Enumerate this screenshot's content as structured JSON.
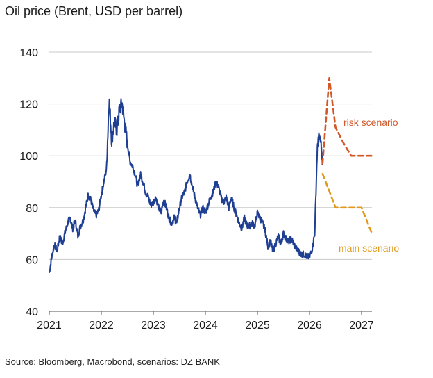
{
  "title": "Oil price (Brent, USD per barrel)",
  "source": "Source: Bloomberg, Macrobond, scenarios: DZ BANK",
  "colors": {
    "brent": "#1f3f93",
    "risk": "#d2582a",
    "main": "#e09a1f",
    "grid": "#c9c9c9",
    "axis": "#555555"
  },
  "chart_data": {
    "type": "line",
    "title": "Oil price (Brent, USD per barrel)",
    "xlabel": "",
    "ylabel": "",
    "xlim": [
      2021,
      2027.25
    ],
    "ylim": [
      40,
      140
    ],
    "y_ticks": [
      40,
      60,
      80,
      100,
      120,
      140
    ],
    "x_ticks": [
      2021,
      2022,
      2023,
      2024,
      2025,
      2026,
      2027
    ],
    "grid": "horizontal",
    "series": [
      {
        "name": "Brent",
        "style": "solid",
        "x": [
          2021.0,
          2021.05,
          2021.1,
          2021.15,
          2021.2,
          2021.25,
          2021.3,
          2021.35,
          2021.4,
          2021.45,
          2021.5,
          2021.55,
          2021.6,
          2021.65,
          2021.7,
          2021.75,
          2021.8,
          2021.85,
          2021.9,
          2021.95,
          2022.0,
          2022.05,
          2022.1,
          2022.15,
          2022.2,
          2022.25,
          2022.3,
          2022.35,
          2022.4,
          2022.45,
          2022.5,
          2022.55,
          2022.6,
          2022.65,
          2022.7,
          2022.75,
          2022.8,
          2022.85,
          2022.9,
          2022.95,
          2023.0,
          2023.05,
          2023.1,
          2023.15,
          2023.2,
          2023.25,
          2023.3,
          2023.35,
          2023.4,
          2023.45,
          2023.5,
          2023.55,
          2023.6,
          2023.65,
          2023.7,
          2023.75,
          2023.8,
          2023.85,
          2023.9,
          2023.95,
          2024.0,
          2024.05,
          2024.1,
          2024.15,
          2024.2,
          2024.25,
          2024.3,
          2024.35,
          2024.4,
          2024.45,
          2024.5,
          2024.55,
          2024.6,
          2024.65,
          2024.7,
          2024.75,
          2024.8,
          2024.85,
          2024.9,
          2024.95,
          2025.0,
          2025.05,
          2025.1,
          2025.15,
          2025.2,
          2025.25,
          2025.3,
          2025.35,
          2025.4,
          2025.45,
          2025.5,
          2025.55,
          2025.6,
          2025.65,
          2025.7,
          2025.75,
          2025.8,
          2025.85,
          2025.9,
          2025.95,
          2026.0,
          2026.05,
          2026.1,
          2026.15,
          2026.18,
          2026.22,
          2026.25
        ],
        "y": [
          55,
          61,
          66,
          63,
          69,
          66,
          70,
          74,
          76,
          72,
          75,
          69,
          73,
          75,
          80,
          85,
          83,
          79,
          77,
          79,
          85,
          90,
          95,
          122,
          106,
          113,
          110,
          118,
          120,
          112,
          105,
          98,
          96,
          93,
          88,
          93,
          90,
          86,
          84,
          81,
          82,
          84,
          80,
          78,
          83,
          80,
          76,
          74,
          76,
          74,
          80,
          84,
          86,
          90,
          93,
          88,
          84,
          80,
          77,
          80,
          78,
          81,
          84,
          86,
          90,
          88,
          84,
          82,
          84,
          80,
          84,
          80,
          77,
          74,
          72,
          76,
          73,
          73,
          74,
          73,
          78,
          76,
          74,
          71,
          65,
          67,
          63,
          66,
          69,
          66,
          70,
          68,
          67,
          68,
          66,
          64,
          63,
          62,
          62,
          61,
          61,
          64,
          70,
          103,
          108,
          105,
          97
        ]
      },
      {
        "name": "risk scenario",
        "style": "dashed",
        "x": [
          2026.25,
          2026.38,
          2026.5,
          2026.65,
          2026.8,
          2027.0,
          2027.2
        ],
        "y": [
          97,
          130,
          111,
          105,
          100,
          100,
          100
        ]
      },
      {
        "name": "main scenario",
        "style": "dashed",
        "x": [
          2026.25,
          2026.35,
          2026.5,
          2026.7,
          2026.85,
          2027.0,
          2027.2
        ],
        "y": [
          93,
          88,
          80,
          80,
          80,
          80,
          70
        ]
      }
    ],
    "annotations": [
      {
        "text": "risk scenario",
        "series": "risk scenario"
      },
      {
        "text": "main scenario",
        "series": "main scenario"
      }
    ]
  }
}
